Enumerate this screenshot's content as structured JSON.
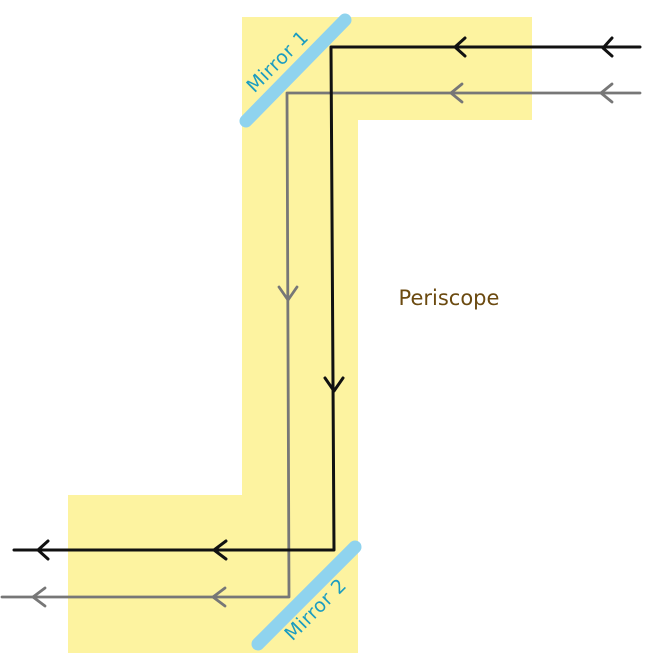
{
  "diagram": {
    "title": "Periscope",
    "mirrors": [
      {
        "id": "mirror-1",
        "label": "Mirror 1"
      },
      {
        "id": "mirror-2",
        "label": "Mirror 2"
      }
    ],
    "rays": [
      {
        "id": "black-ray",
        "color": "#111111"
      },
      {
        "id": "grey-ray",
        "color": "#777777"
      }
    ],
    "colors": {
      "body": "#fdf3a0",
      "mirror": "#8fd3ee",
      "mirror_label": "#1b9cc0",
      "title": "#6b4a10"
    }
  }
}
